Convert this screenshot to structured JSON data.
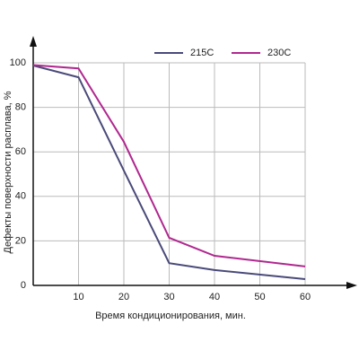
{
  "chart_data": {
    "type": "line",
    "xlabel": "Время кондиционирования, мин.",
    "ylabel": "Дефекты поверхности расплава, %",
    "xlim": [
      0,
      60
    ],
    "xticks": [
      10,
      20,
      30,
      40,
      50,
      60
    ],
    "ylim": [
      0,
      100
    ],
    "yticks": [
      0,
      20,
      40,
      60,
      80,
      100
    ],
    "grid": true,
    "legend": "top-right",
    "series": [
      {
        "name": "215C",
        "color": "#4a4a7a",
        "x": [
          0,
          10,
          20,
          30,
          40,
          60
        ],
        "values": [
          98.8,
          93.5,
          51.6,
          10,
          6.9,
          2.8
        ]
      },
      {
        "name": "230C",
        "color": "#b0288f",
        "x": [
          0,
          10,
          20,
          30,
          40,
          60
        ],
        "values": [
          99,
          97.5,
          64.5,
          21.4,
          13.3,
          8.5
        ]
      }
    ]
  }
}
